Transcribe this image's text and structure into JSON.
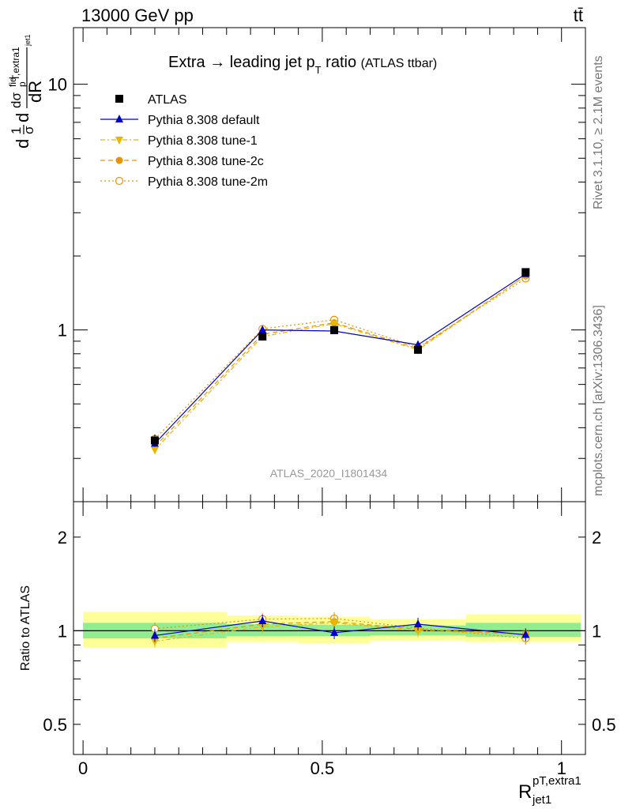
{
  "header": {
    "left": "13000 GeV pp",
    "right": "tt̄"
  },
  "side_text": {
    "rivet": "Rivet 3.1.10, ≥ 2.1M events",
    "mcplots": "mcplots.cern.ch [arXiv:1306.3436]"
  },
  "chart_data": [
    {
      "type": "line",
      "title_main": "Extra → leading jet p",
      "title_sub": "T",
      "title_tail": " ratio",
      "title_paren": "(ATLAS ttbar)",
      "analysis_label": "ATLAS_2020_I1801434",
      "ylabel": "dσ/dR",
      "yscale": "log",
      "ylim": [
        0.2,
        17
      ],
      "yticks": [
        {
          "v": 1,
          "label": "1"
        },
        {
          "v": 10,
          "label": "10"
        }
      ],
      "x": [
        0.15,
        0.375,
        0.525,
        0.7,
        0.925
      ],
      "series": [
        {
          "name": "ATLAS",
          "color": "#000000",
          "marker": "square",
          "dash": "none",
          "values": [
            0.355,
            0.94,
            1.0,
            0.83,
            1.72
          ],
          "errors": [
            0.02,
            0.03,
            0.03,
            0.025,
            0.05
          ]
        },
        {
          "name": "Pythia 8.308 default",
          "color": "#0000cc",
          "marker": "triangle-up",
          "dash": "solid",
          "values": [
            0.345,
            1.0,
            0.99,
            0.87,
            1.69
          ]
        },
        {
          "name": "Pythia 8.308 tune-1",
          "color": "#e6b800",
          "marker": "triangle-down",
          "dash": "dashdot",
          "values": [
            0.325,
            0.94,
            1.06,
            0.83,
            1.66
          ]
        },
        {
          "name": "Pythia 8.308 tune-2c",
          "color": "#e69500",
          "marker": "circle-filled",
          "dash": "dashed",
          "values": [
            0.335,
            0.96,
            1.07,
            0.84,
            1.66
          ]
        },
        {
          "name": "Pythia 8.308 tune-2m",
          "color": "#e69500",
          "marker": "circle-open",
          "dash": "dotted",
          "values": [
            0.36,
            1.01,
            1.1,
            0.85,
            1.62
          ]
        }
      ]
    },
    {
      "type": "line",
      "ylabel": "Ratio to ATLAS",
      "xlabel": "R",
      "xlabel_sup": "pT,extra1",
      "xlabel_sub": "jet1",
      "yscale": "log",
      "ylim": [
        0.4,
        2.6
      ],
      "xlim": [
        -0.02,
        1.05
      ],
      "yticks": [
        {
          "v": 0.5,
          "label": "0.5"
        },
        {
          "v": 1,
          "label": "1"
        },
        {
          "v": 2,
          "label": "2"
        }
      ],
      "xticks": [
        {
          "v": 0,
          "label": "0"
        },
        {
          "v": 0.5,
          "label": "0.5"
        },
        {
          "v": 1,
          "label": "1"
        }
      ],
      "x": [
        0.15,
        0.375,
        0.525,
        0.7,
        0.925
      ],
      "bands": [
        {
          "x0": 0.0,
          "x1": 0.3,
          "stat": [
            0.945,
            1.06
          ],
          "tot": [
            0.88,
            1.15
          ]
        },
        {
          "x0": 0.3,
          "x1": 0.45,
          "stat": [
            0.96,
            1.05
          ],
          "tot": [
            0.92,
            1.12
          ]
        },
        {
          "x0": 0.45,
          "x1": 0.6,
          "stat": [
            0.96,
            1.045
          ],
          "tot": [
            0.91,
            1.11
          ]
        },
        {
          "x0": 0.6,
          "x1": 0.8,
          "stat": [
            0.965,
            1.04
          ],
          "tot": [
            0.93,
            1.09
          ]
        },
        {
          "x0": 0.8,
          "x1": 1.05,
          "stat": [
            0.955,
            1.06
          ],
          "tot": [
            0.92,
            1.13
          ]
        }
      ],
      "band_colors": {
        "stat": "#90ee90",
        "tot": "#ffff99"
      },
      "series": [
        {
          "name": "Pythia 8.308 default",
          "color": "#0000cc",
          "marker": "triangle-up",
          "dash": "solid",
          "values": [
            0.965,
            1.075,
            0.985,
            1.05,
            0.97
          ]
        },
        {
          "name": "Pythia 8.308 tune-1",
          "color": "#e6b800",
          "marker": "triangle-down",
          "dash": "dashdot",
          "values": [
            0.925,
            1.03,
            1.06,
            1.0,
            0.975
          ]
        },
        {
          "name": "Pythia 8.308 tune-2c",
          "color": "#e69500",
          "marker": "circle-filled",
          "dash": "dashed",
          "values": [
            0.945,
            1.05,
            1.07,
            1.01,
            0.975
          ]
        },
        {
          "name": "Pythia 8.308 tune-2m",
          "color": "#e69500",
          "marker": "circle-open",
          "dash": "dotted",
          "values": [
            1.015,
            1.09,
            1.095,
            1.02,
            0.945
          ]
        }
      ]
    }
  ]
}
